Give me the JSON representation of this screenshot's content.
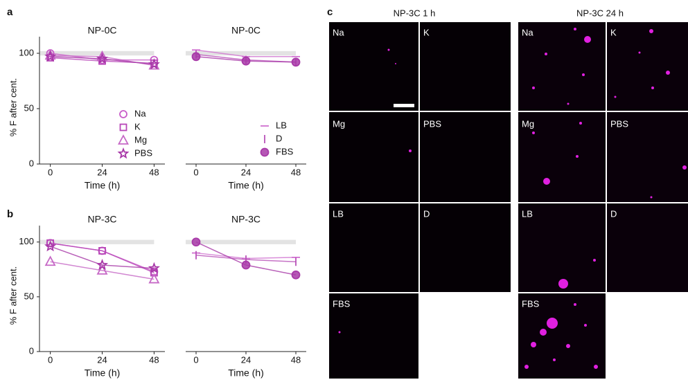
{
  "panel_labels": [
    "a",
    "b",
    "c"
  ],
  "chart_data": [
    {
      "type": "line",
      "title": "NP-0C",
      "ylabel": "% F after cent.",
      "xlabel": "Time (h)",
      "x": [
        0,
        24,
        48
      ],
      "xlim": [
        -5,
        53
      ],
      "ylim": [
        0,
        115
      ],
      "xticks": [
        0,
        24,
        48
      ],
      "yticks": [
        0,
        50,
        100
      ],
      "band": [
        98,
        102
      ],
      "legend": "lower right",
      "series": [
        {
          "name": "Na",
          "marker": "circle",
          "color": "#c85cc8",
          "values": [
            100,
            94,
            94
          ]
        },
        {
          "name": "K",
          "marker": "square",
          "color": "#b846b8",
          "values": [
            96,
            93,
            91
          ]
        },
        {
          "name": "Mg",
          "marker": "triangle",
          "color": "#c668c6",
          "values": [
            98,
            97,
            89
          ]
        },
        {
          "name": "PBS",
          "marker": "star",
          "color": "#a838a8",
          "values": [
            97,
            95,
            90
          ]
        }
      ]
    },
    {
      "type": "line",
      "title": "NP-0C",
      "xlabel": "Time (h)",
      "x": [
        0,
        24,
        48
      ],
      "xlim": [
        -5,
        53
      ],
      "ylim": [
        0,
        115
      ],
      "xticks": [
        0,
        24,
        48
      ],
      "band": [
        98,
        102
      ],
      "legend": "lower right",
      "series": [
        {
          "name": "LB",
          "marker": "hline",
          "color": "#d070d0",
          "values": [
            103,
            97,
            97
          ]
        },
        {
          "name": "D",
          "marker": "vline",
          "color": "#b850b8",
          "values": [
            99,
            94,
            92
          ]
        },
        {
          "name": "FBS",
          "marker": "filled-circle",
          "color": "#a83aa8",
          "values": [
            97,
            93,
            92
          ]
        }
      ]
    },
    {
      "type": "line",
      "title": "NP-3C",
      "ylabel": "% F after cent.",
      "xlabel": "Time (h)",
      "x": [
        0,
        24,
        48
      ],
      "xlim": [
        -5,
        53
      ],
      "ylim": [
        0,
        115
      ],
      "xticks": [
        0,
        24,
        48
      ],
      "yticks": [
        0,
        50,
        100
      ],
      "band": [
        98,
        102
      ],
      "series": [
        {
          "name": "Na",
          "marker": "circle",
          "color": "#c85cc8",
          "values": [
            99,
            92,
            73
          ]
        },
        {
          "name": "K",
          "marker": "square",
          "color": "#b846b8",
          "values": [
            99,
            92,
            72
          ]
        },
        {
          "name": "Mg",
          "marker": "triangle",
          "color": "#c668c6",
          "values": [
            82,
            74,
            66
          ]
        },
        {
          "name": "PBS",
          "marker": "star",
          "color": "#a838a8",
          "values": [
            96,
            79,
            76
          ]
        }
      ]
    },
    {
      "type": "line",
      "title": "NP-3C",
      "xlabel": "Time (h)",
      "x": [
        0,
        24,
        48
      ],
      "xlim": [
        -5,
        53
      ],
      "ylim": [
        0,
        115
      ],
      "xticks": [
        0,
        24,
        48
      ],
      "band": [
        98,
        102
      ],
      "series": [
        {
          "name": "LB",
          "marker": "hline",
          "color": "#d070d0",
          "values": [
            90,
            85,
            86
          ]
        },
        {
          "name": "D",
          "marker": "vline",
          "color": "#b850b8",
          "values": [
            88,
            84,
            82
          ]
        },
        {
          "name": "FBS",
          "marker": "filled-circle",
          "color": "#a83aa8",
          "values": [
            100,
            79,
            70
          ]
        }
      ]
    }
  ],
  "images": {
    "columns": [
      "NP-3C 1 h",
      "NP-3C 24 h"
    ],
    "tiles": [
      "Na",
      "K",
      "Mg",
      "PBS",
      "LB",
      "D",
      "FBS"
    ]
  }
}
